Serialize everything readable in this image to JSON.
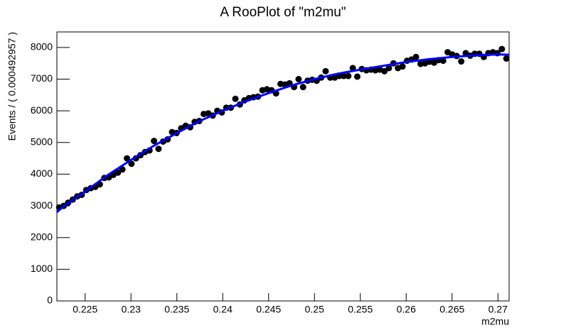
{
  "chart_data": {
    "type": "scatter",
    "title": "A RooPlot of \"m2mu\"",
    "xlabel": "m2mu",
    "ylabel": "Events / ( 0.000492957 )",
    "xlim": [
      0.22192,
      0.27122
    ],
    "ylim": [
      0,
      8490
    ],
    "xticks": [
      0.225,
      0.23,
      0.235,
      0.24,
      0.245,
      0.25,
      0.255,
      0.26,
      0.265,
      0.27
    ],
    "yticks": [
      0,
      1000,
      2000,
      3000,
      4000,
      5000,
      6000,
      7000,
      8000
    ],
    "series": [
      {
        "type": "scatter",
        "color": "#000000",
        "x": [
          0.22217,
          0.22266,
          0.22315,
          0.22365,
          0.22414,
          0.22463,
          0.22512,
          0.22562,
          0.22611,
          0.2266,
          0.22709,
          0.22759,
          0.22808,
          0.22857,
          0.22906,
          0.22956,
          0.23005,
          0.23054,
          0.23103,
          0.23153,
          0.23202,
          0.23251,
          0.233,
          0.2335,
          0.23399,
          0.23448,
          0.23497,
          0.23547,
          0.23596,
          0.23645,
          0.23694,
          0.23744,
          0.23793,
          0.23842,
          0.23891,
          0.23941,
          0.2399,
          0.24039,
          0.24088,
          0.24138,
          0.24187,
          0.24236,
          0.24285,
          0.24335,
          0.24384,
          0.24433,
          0.24482,
          0.24532,
          0.24581,
          0.2463,
          0.24679,
          0.24728,
          0.24778,
          0.24827,
          0.24876,
          0.24925,
          0.24975,
          0.25024,
          0.25073,
          0.25122,
          0.25172,
          0.25221,
          0.2527,
          0.25319,
          0.25369,
          0.25418,
          0.25467,
          0.25516,
          0.25566,
          0.25615,
          0.25664,
          0.25713,
          0.25763,
          0.25812,
          0.25861,
          0.2591,
          0.2596,
          0.26009,
          0.26058,
          0.26107,
          0.26157,
          0.26206,
          0.26255,
          0.26304,
          0.26354,
          0.26403,
          0.26452,
          0.26501,
          0.26551,
          0.266,
          0.26649,
          0.26698,
          0.26748,
          0.26797,
          0.26846,
          0.26895,
          0.26945,
          0.26994,
          0.27043,
          0.27092
        ],
        "values": [
          2950,
          3000,
          3100,
          3200,
          3300,
          3350,
          3500,
          3560,
          3600,
          3680,
          3880,
          3900,
          3980,
          4050,
          4150,
          4500,
          4330,
          4500,
          4600,
          4700,
          4750,
          5050,
          4800,
          5030,
          5100,
          5330,
          5300,
          5450,
          5530,
          5480,
          5650,
          5680,
          5900,
          5920,
          5850,
          6000,
          5950,
          6100,
          6100,
          6380,
          6200,
          6330,
          6400,
          6430,
          6450,
          6650,
          6680,
          6650,
          6550,
          6850,
          6830,
          6870,
          6750,
          7000,
          6750,
          6950,
          6980,
          6950,
          7050,
          7250,
          7050,
          7050,
          7100,
          7100,
          7100,
          7350,
          7080,
          7320,
          7280,
          7300,
          7280,
          7300,
          7250,
          7350,
          7500,
          7350,
          7400,
          7580,
          7620,
          7700,
          7480,
          7500,
          7550,
          7520,
          7600,
          7580,
          7850,
          7780,
          7730,
          7560,
          7820,
          7740,
          7800,
          7800,
          7700,
          7820,
          7850,
          7820,
          7950,
          7650
        ]
      },
      {
        "type": "line",
        "color": "#0000ff",
        "x": [
          0.22192,
          0.2225,
          0.225,
          0.2275,
          0.23,
          0.2325,
          0.235,
          0.2375,
          0.24,
          0.2425,
          0.245,
          0.2475,
          0.25,
          0.2525,
          0.255,
          0.2575,
          0.26,
          0.2625,
          0.265,
          0.2675,
          0.27,
          0.27122
        ],
        "values": [
          2800,
          2950,
          3450,
          3980,
          4450,
          4900,
          5300,
          5680,
          6000,
          6300,
          6560,
          6800,
          7000,
          7170,
          7300,
          7420,
          7540,
          7630,
          7700,
          7750,
          7780,
          7770
        ]
      }
    ]
  }
}
